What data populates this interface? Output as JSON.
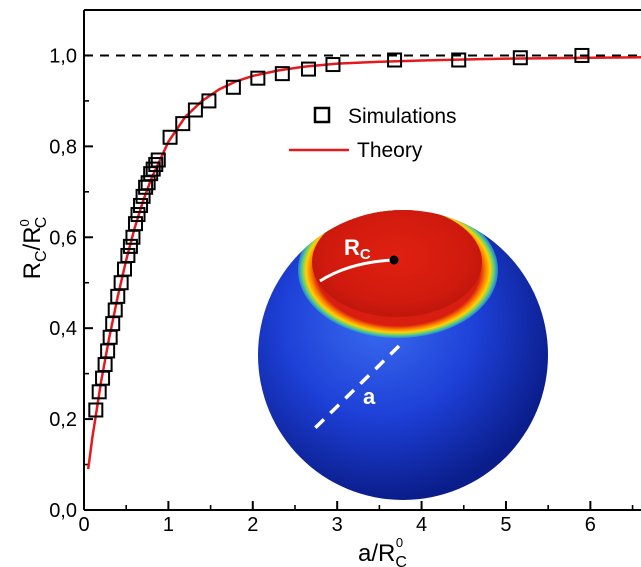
{
  "chart_data": {
    "type": "scatter",
    "xlabel": "a/R",
    "xlabel_sub": "C",
    "xlabel_sup": "0",
    "ylabel_main": "R",
    "ylabel_sub1": "C",
    "ylabel_slash": "/R",
    "ylabel_sup": "0",
    "ylabel_sub2": "C",
    "xlim": [
      0,
      6.6
    ],
    "ylim": [
      0.0,
      1.1
    ],
    "xticks": [
      0,
      1,
      2,
      3,
      4,
      5,
      6
    ],
    "yticks": [
      0.0,
      0.2,
      0.4,
      0.6,
      0.8,
      1.0
    ],
    "ytick_labels": [
      "0,0",
      "0,2",
      "0,4",
      "0,6",
      "0,8",
      "1,0"
    ],
    "xtick_labels": [
      "0",
      "1",
      "2",
      "3",
      "4",
      "5",
      "6"
    ],
    "reference_line": {
      "y": 1.0,
      "style": "dashed",
      "color": "#000000"
    },
    "legend_position": "upper-middle",
    "series": [
      {
        "name": "Simulations",
        "marker": "open-square",
        "color": "#000000",
        "x": [
          0.14,
          0.18,
          0.22,
          0.25,
          0.28,
          0.31,
          0.34,
          0.37,
          0.4,
          0.44,
          0.48,
          0.52,
          0.55,
          0.58,
          0.61,
          0.64,
          0.67,
          0.7,
          0.73,
          0.76,
          0.79,
          0.82,
          0.85,
          0.88,
          1.02,
          1.17,
          1.32,
          1.48,
          1.77,
          2.06,
          2.35,
          2.66,
          2.95,
          3.68,
          4.44,
          5.17,
          5.9
        ],
        "y": [
          0.22,
          0.26,
          0.29,
          0.32,
          0.35,
          0.38,
          0.41,
          0.44,
          0.47,
          0.5,
          0.53,
          0.56,
          0.58,
          0.6,
          0.63,
          0.65,
          0.67,
          0.69,
          0.71,
          0.72,
          0.74,
          0.75,
          0.76,
          0.77,
          0.82,
          0.85,
          0.88,
          0.9,
          0.93,
          0.95,
          0.96,
          0.97,
          0.98,
          0.99,
          0.99,
          0.995,
          1.0
        ]
      },
      {
        "name": "Theory",
        "line": "solid",
        "color": "#e41a1c",
        "x": [
          0.05,
          0.1,
          0.15,
          0.2,
          0.3,
          0.4,
          0.5,
          0.6,
          0.7,
          0.8,
          0.9,
          1.0,
          1.2,
          1.4,
          1.6,
          1.8,
          2.0,
          2.3,
          2.6,
          3.0,
          3.5,
          4.0,
          4.5,
          5.0,
          5.5,
          6.0,
          6.6
        ],
        "y": [
          0.09,
          0.16,
          0.22,
          0.28,
          0.38,
          0.47,
          0.55,
          0.62,
          0.68,
          0.73,
          0.77,
          0.81,
          0.865,
          0.9,
          0.925,
          0.943,
          0.955,
          0.967,
          0.975,
          0.982,
          0.986,
          0.989,
          0.991,
          0.993,
          0.994,
          0.995,
          0.996
        ]
      }
    ],
    "inset": {
      "label_radius": "R",
      "label_radius_sub": "C",
      "label_distance": "a",
      "colors": {
        "sphere": "#1f3fd0",
        "cap": "#d81e10",
        "rim": "#ffd200"
      }
    }
  }
}
